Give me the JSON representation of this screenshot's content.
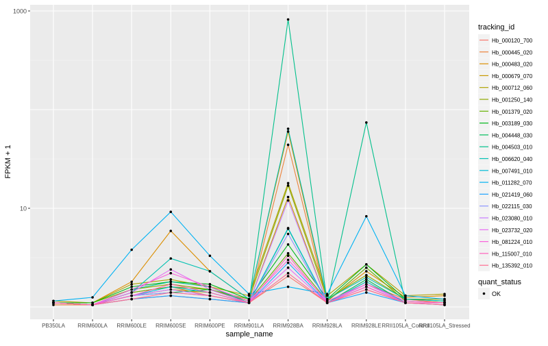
{
  "chart_data": {
    "type": "line",
    "xlabel": "sample_name",
    "ylabel": "FPKM + 1",
    "y_scale": "log10",
    "ylim": [
      1,
      1000
    ],
    "y_ticks": [
      {
        "value": 10,
        "label": "10"
      },
      {
        "value": 1000,
        "label": "1000"
      }
    ],
    "categories": [
      "PB350LA",
      "RRIM600LA",
      "RRIM600LE",
      "RRIM600SE",
      "RRIM600PE",
      "RRIM901LA",
      "RRIM928BA",
      "RRIM928LA",
      "RRIM928LE",
      "RRII105LA_Control",
      "RRII105LA_Stressed"
    ],
    "legend": {
      "title": "tracking_id",
      "position": "right",
      "shape_title": "quant_status",
      "shape_label": "OK"
    },
    "series": [
      {
        "name": "Hb_000120_700",
        "color": "#F8766D",
        "values": [
          1.1,
          1.05,
          1.2,
          1.3,
          1.2,
          1.1,
          2.05,
          1.1,
          1.5,
          1.1,
          1.05
        ]
      },
      {
        "name": "Hb_000445_020",
        "color": "#EC8239",
        "values": [
          1.05,
          1.05,
          1.4,
          1.6,
          1.3,
          1.1,
          44,
          1.1,
          1.7,
          1.2,
          1.1
        ]
      },
      {
        "name": "Hb_000483_020",
        "color": "#DB8E00",
        "values": [
          1.1,
          1.1,
          1.8,
          5.9,
          2.3,
          1.2,
          60,
          1.15,
          2.3,
          1.25,
          1.3
        ]
      },
      {
        "name": "Hb_000679_070",
        "color": "#C79800",
        "values": [
          1.1,
          1.05,
          1.3,
          1.5,
          1.4,
          1.1,
          13,
          1.1,
          1.8,
          1.1,
          1.1
        ]
      },
      {
        "name": "Hb_000712_060",
        "color": "#AEA200",
        "values": [
          1.15,
          1.1,
          1.7,
          1.9,
          1.6,
          1.3,
          18,
          1.3,
          2.7,
          1.3,
          1.35
        ]
      },
      {
        "name": "Hb_001250_140",
        "color": "#8FAA00",
        "values": [
          1.1,
          1.1,
          1.5,
          1.7,
          1.5,
          1.2,
          17,
          1.2,
          2.1,
          1.2,
          1.2
        ]
      },
      {
        "name": "Hb_001379_020",
        "color": "#64B200",
        "values": [
          1.1,
          1.05,
          1.4,
          1.6,
          1.5,
          1.15,
          3.5,
          1.15,
          2.5,
          1.15,
          1.1
        ]
      },
      {
        "name": "Hb_003189_030",
        "color": "#00B81B",
        "values": [
          1.1,
          1.1,
          1.6,
          1.8,
          1.7,
          1.2,
          4.3,
          1.2,
          2.7,
          1.2,
          1.15
        ]
      },
      {
        "name": "Hb_004448_030",
        "color": "#00BD5C",
        "values": [
          1.1,
          1.05,
          1.3,
          1.4,
          1.5,
          1.1,
          6.2,
          1.1,
          1.9,
          1.1,
          1.1
        ]
      },
      {
        "name": "Hb_004503_010",
        "color": "#00C08B",
        "values": [
          1.1,
          1.05,
          1.5,
          1.8,
          1.6,
          1.1,
          820,
          1.1,
          74,
          1.1,
          1.1
        ]
      },
      {
        "name": "Hb_006620_040",
        "color": "#00C1B2",
        "values": [
          1.1,
          1.05,
          1.4,
          3.1,
          2.3,
          1.2,
          64,
          1.2,
          2.0,
          1.2,
          1.15
        ]
      },
      {
        "name": "Hb_007491_010",
        "color": "#00BCD6",
        "values": [
          1.1,
          1.05,
          1.3,
          1.6,
          1.4,
          1.1,
          6.3,
          1.1,
          1.8,
          1.1,
          1.1
        ]
      },
      {
        "name": "Hb_011282_070",
        "color": "#00B2F3",
        "values": [
          1.15,
          1.25,
          3.8,
          9.2,
          3.3,
          1.35,
          1.6,
          1.35,
          8.3,
          1.3,
          1.2
        ]
      },
      {
        "name": "Hb_021419_060",
        "color": "#1FA3FF",
        "values": [
          1.1,
          1.05,
          1.2,
          1.3,
          1.2,
          1.1,
          2.8,
          1.1,
          1.4,
          1.1,
          1.05
        ]
      },
      {
        "name": "Hb_022115_030",
        "color": "#8B93FF",
        "values": [
          1.1,
          1.05,
          1.3,
          1.4,
          1.3,
          1.1,
          5.5,
          1.1,
          1.6,
          1.1,
          1.1
        ]
      },
      {
        "name": "Hb_023080_010",
        "color": "#C77CFF",
        "values": [
          1.1,
          1.05,
          1.3,
          1.5,
          1.3,
          1.1,
          12,
          1.1,
          1.7,
          1.1,
          1.1
        ]
      },
      {
        "name": "Hb_023732_020",
        "color": "#E76BF3",
        "values": [
          1.1,
          1.05,
          1.4,
          2.4,
          1.5,
          1.1,
          2.5,
          1.1,
          1.6,
          1.1,
          1.1
        ]
      },
      {
        "name": "Hb_081224_010",
        "color": "#FA62DB",
        "values": [
          1.1,
          1.05,
          1.5,
          2.2,
          1.6,
          1.15,
          3.0,
          1.15,
          1.7,
          1.15,
          1.1
        ]
      },
      {
        "name": "Hb_115007_010",
        "color": "#FF62BC",
        "values": [
          1.1,
          1.05,
          1.3,
          1.7,
          1.4,
          1.1,
          3.3,
          1.1,
          1.6,
          1.1,
          1.1
        ]
      },
      {
        "name": "Hb_135392_010",
        "color": "#FF6C91",
        "values": [
          1.1,
          1.05,
          1.2,
          1.4,
          1.3,
          1.1,
          2.2,
          1.1,
          1.5,
          1.1,
          1.05
        ]
      }
    ]
  }
}
